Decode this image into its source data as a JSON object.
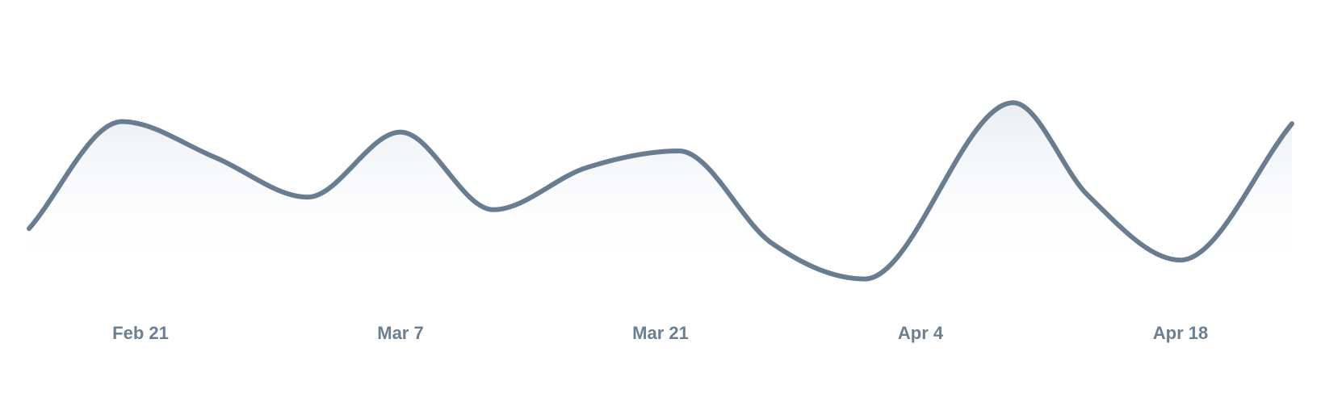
{
  "chart_data": {
    "type": "area",
    "title": "",
    "xlabel": "",
    "ylabel": "",
    "x_domain": [
      "2025-02-15",
      "2025-04-24"
    ],
    "ylim": [
      0,
      100
    ],
    "grid": false,
    "legend": "none",
    "colors": {
      "line": "#697d91",
      "fill_top": "#e8ecf1",
      "fill_bottom": "#ffffff",
      "tick_label": "#6b7f93"
    },
    "x_ticks": [
      {
        "date": "2025-02-21",
        "label": "Feb 21"
      },
      {
        "date": "2025-03-07",
        "label": "Mar 7"
      },
      {
        "date": "2025-03-21",
        "label": "Mar 21"
      },
      {
        "date": "2025-04-04",
        "label": "Apr 4"
      },
      {
        "date": "2025-04-18",
        "label": "Apr 18"
      }
    ],
    "series": [
      {
        "points": [
          {
            "date": "2025-02-15",
            "value": 28
          },
          {
            "date": "2025-02-20",
            "value": 79
          },
          {
            "date": "2025-02-25",
            "value": 62
          },
          {
            "date": "2025-03-02",
            "value": 43
          },
          {
            "date": "2025-03-07",
            "value": 74
          },
          {
            "date": "2025-03-12",
            "value": 37
          },
          {
            "date": "2025-03-17",
            "value": 57
          },
          {
            "date": "2025-03-22",
            "value": 65
          },
          {
            "date": "2025-03-27",
            "value": 21
          },
          {
            "date": "2025-04-01",
            "value": 4
          },
          {
            "date": "2025-04-09",
            "value": 88
          },
          {
            "date": "2025-04-13",
            "value": 44
          },
          {
            "date": "2025-04-18",
            "value": 13
          },
          {
            "date": "2025-04-24",
            "value": 78
          }
        ]
      }
    ]
  }
}
